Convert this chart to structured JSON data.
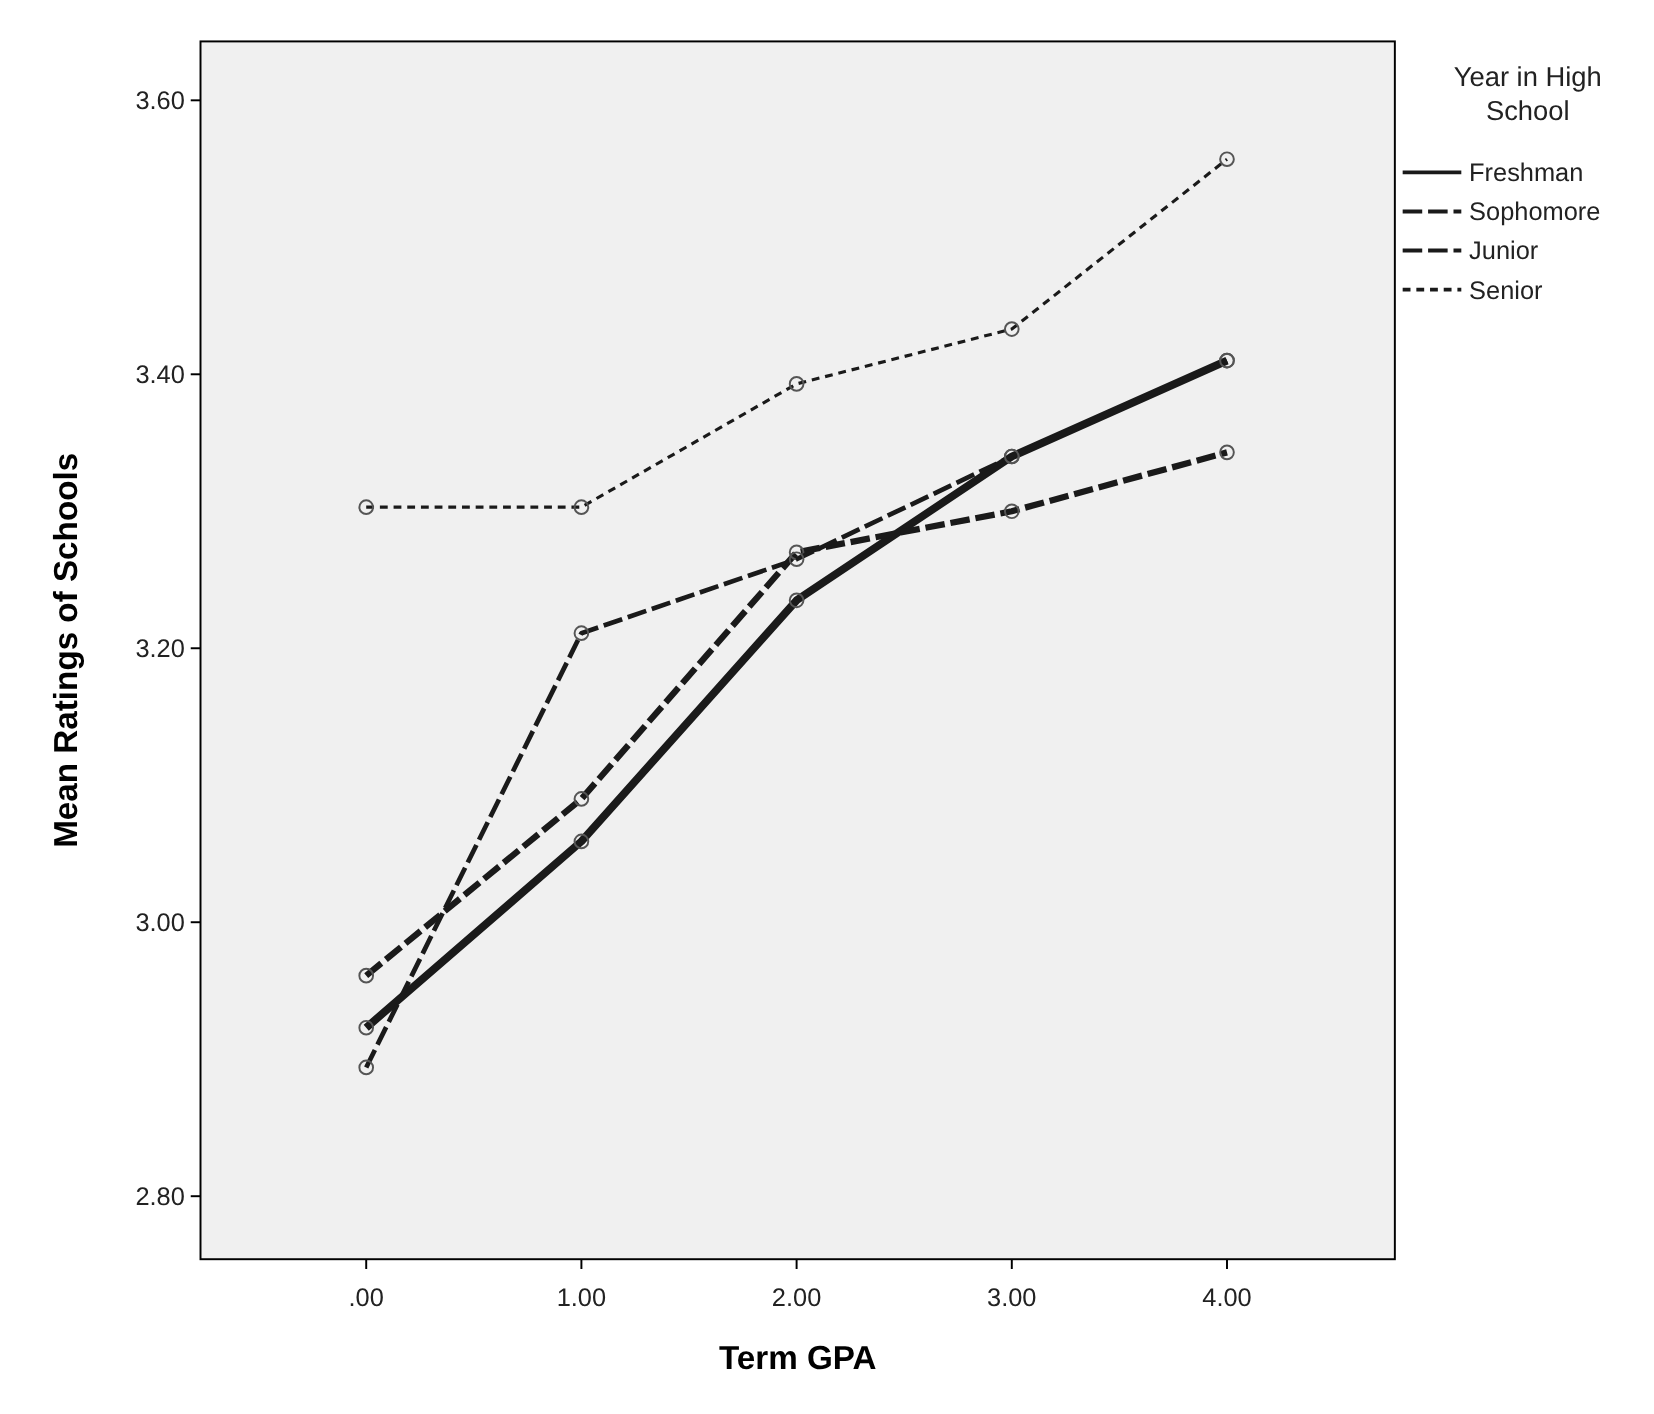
{
  "chart_data": {
    "type": "line",
    "xlabel": "Term GPA",
    "ylabel": "Mean Ratings of Schools",
    "legend_title": "Year in High School",
    "legend": "top right",
    "marker": "circle",
    "grid": false,
    "x": [
      0,
      1,
      2,
      3,
      4
    ],
    "xlim": [
      -0.77,
      4.78
    ],
    "xticks": [
      {
        "value": 0,
        "label": ".00"
      },
      {
        "value": 1,
        "label": "1.00"
      },
      {
        "value": 2,
        "label": "2.00"
      },
      {
        "value": 3,
        "label": "3.00"
      },
      {
        "value": 4,
        "label": "4.00"
      }
    ],
    "ylim": [
      2.754,
      3.643
    ],
    "yticks": [
      {
        "value": 2.8,
        "label": "2.80"
      },
      {
        "value": 3.0,
        "label": "3.00"
      },
      {
        "value": 3.2,
        "label": "3.20"
      },
      {
        "value": 3.4,
        "label": "3.40"
      },
      {
        "value": 3.6,
        "label": "3.60"
      }
    ],
    "series": [
      {
        "name": "Freshman",
        "color": "#1a1a1a",
        "line_style": "solid",
        "values": [
          2.923,
          3.059,
          3.235,
          3.34,
          3.41
        ]
      },
      {
        "name": "Sophomore",
        "color": "#1a1a1a",
        "line_style": "dashed",
        "values": [
          2.961,
          3.09,
          3.27,
          3.3,
          3.343
        ]
      },
      {
        "name": "Junior",
        "color": "#1a1a1a",
        "line_style": "dashed",
        "values": [
          2.894,
          3.211,
          3.265,
          3.34,
          3.41
        ]
      },
      {
        "name": "Senior",
        "color": "#1a1a1a",
        "line_style": "dotted",
        "values": [
          3.303,
          3.303,
          3.393,
          3.433,
          3.557
        ]
      }
    ]
  }
}
